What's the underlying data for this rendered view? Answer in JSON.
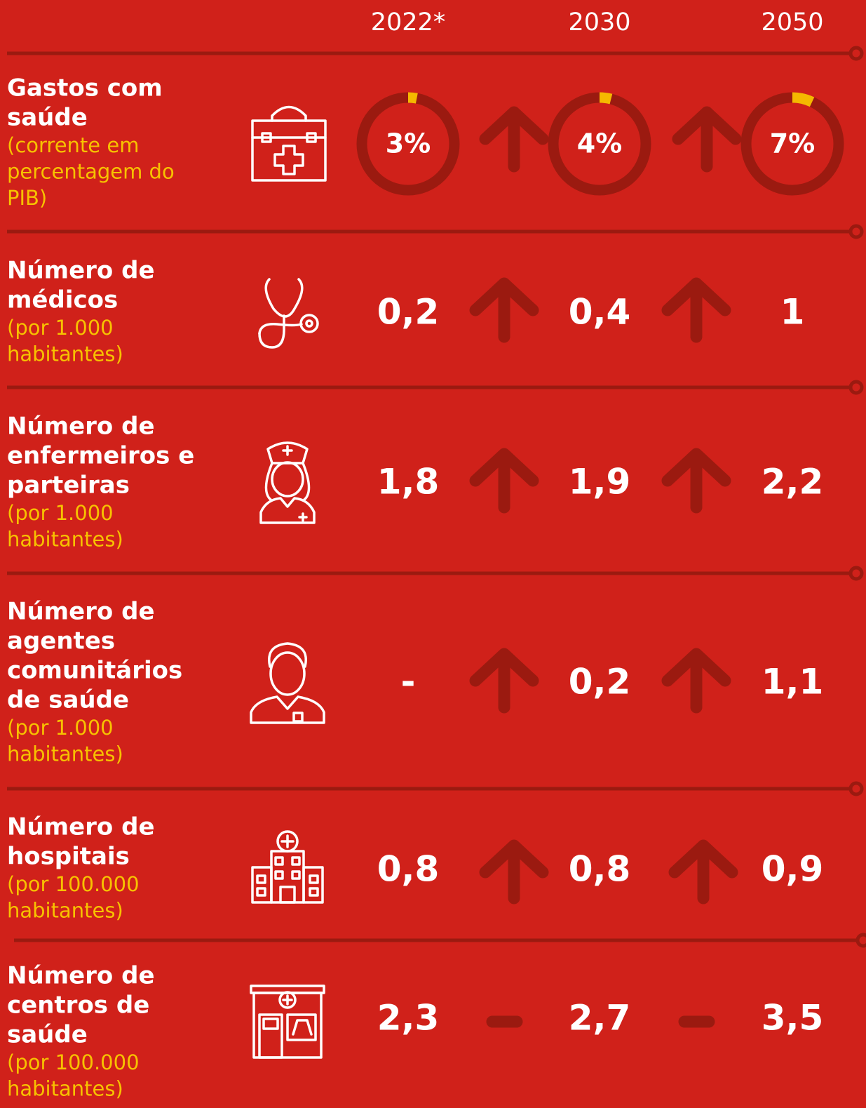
{
  "header": {
    "years": [
      "2022*",
      "2030",
      "2050"
    ]
  },
  "rows": [
    {
      "title": [
        "Gastos com",
        "saúde"
      ],
      "subtitle": [
        "(corrente em",
        "percentagem do",
        "PIB)"
      ],
      "values": [
        3,
        4,
        7
      ],
      "value_labels": [
        "3%",
        "4%",
        "7%"
      ]
    },
    {
      "title": [
        "Número de",
        "médicos"
      ],
      "subtitle": [
        "(por 1.000",
        "habitantes)"
      ],
      "values": [
        "0,2",
        "0,4",
        "1"
      ]
    },
    {
      "title": [
        "Número de",
        "enfermeiros e",
        "parteiras"
      ],
      "subtitle": [
        "(por 1.000",
        "habitantes)"
      ],
      "values": [
        "1,8",
        "1,9",
        "2,2"
      ]
    },
    {
      "title": [
        "Número de",
        "agentes",
        "comunitários",
        "de saúde"
      ],
      "subtitle": [
        "(por 1.000",
        "habitantes)"
      ],
      "values": [
        "-",
        "0,2",
        "1,1"
      ]
    },
    {
      "title": [
        "Número de",
        "hospitais"
      ],
      "subtitle": [
        "(por 100.000",
        "habitantes)"
      ],
      "values": [
        "0,8",
        "0,8",
        "0,9"
      ]
    },
    {
      "title": [
        "Número de",
        "centros de",
        "saúde"
      ],
      "subtitle": [
        "(por 100.000",
        "habitantes)"
      ],
      "values": [
        "2,3",
        "2,7",
        "3,5"
      ]
    }
  ]
}
